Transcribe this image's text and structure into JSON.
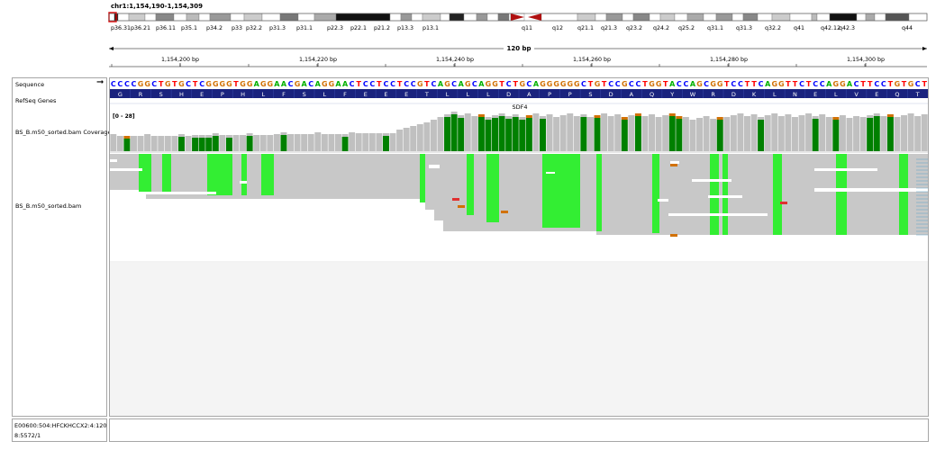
{
  "locus": "chr1:1,154,190-1,154,309",
  "ideogram": {
    "bands": [
      "p36.31",
      "p36.21",
      "p36.11",
      "p35.1",
      "p34.2",
      "p33",
      "p32.2",
      "p31.3",
      "p31.1",
      "p22.3",
      "p22.1",
      "p21.2",
      "p13.3",
      "p13.1",
      "q11",
      "q12",
      "q21.1",
      "q21.3",
      "q23.2",
      "q24.2",
      "q25.2",
      "q31.1",
      "q31.3",
      "q32.2",
      "q41",
      "q42.12",
      "q42.3",
      "q44"
    ]
  },
  "ruler": {
    "span_label": "120 bp",
    "ticks": [
      "1,154,200 bp",
      "1,154,220 bp",
      "1,154,240 bp",
      "1,154,260 bp",
      "1,154,280 bp",
      "1,154,300 bp"
    ]
  },
  "tracks": {
    "sequence_label": "Sequence",
    "refseq_label": "RefSeq Genes",
    "coverage_label": "BS_B.m50_sorted.bam Coverage",
    "alignment_label": "BS_B.m50_sorted.bam",
    "coverage_range": "[0 - 28]",
    "gene_name": "SDF4"
  },
  "sequence": "CCCCGGCTGTGCTCGGGGTGGAGGAACGACAGGAACTCCTCCTCCGTCAGCAGCAGGTCTGCAGGGGGGCTGTCCGCCTGGTACCAGCGGTCCTTCAGGTTCTCCAGGACTTCCTGTGCT",
  "amino_acids": [
    "G",
    "R",
    "S",
    "H",
    "E",
    "P",
    "H",
    "L",
    "F",
    "S",
    "L",
    "F",
    "E",
    "E",
    "E",
    "T",
    "L",
    "L",
    "L",
    "D",
    "A",
    "P",
    "P",
    "S",
    "D",
    "A",
    "Q",
    "Y",
    "W",
    "R",
    "D",
    "K",
    "L",
    "N",
    "E",
    "L",
    "V",
    "E",
    "Q",
    "T"
  ],
  "status": {
    "line1": "E00600:504:HFCKHCCX2:4:120",
    "line2": "8:5572/1"
  },
  "colors": {
    "A": "#00b000",
    "C": "#0000ff",
    "G": "#d17105",
    "T": "#ff0000",
    "amino_bg": "#1a237e",
    "coverage_gray": "#c0c0c0",
    "methyl_green": "#008000",
    "read_gray": "#c8c8c8",
    "bright_green": "#33ee33"
  }
}
